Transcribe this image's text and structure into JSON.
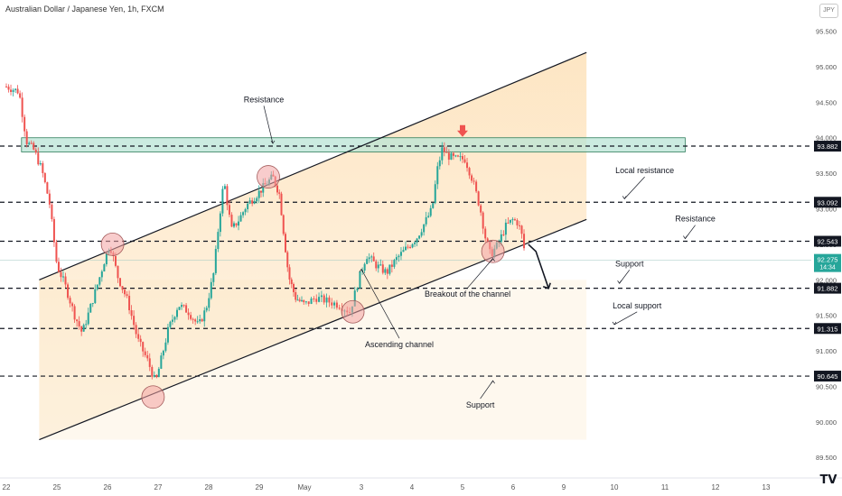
{
  "header": {
    "title": "Australian Dollar / Japanese Yen, 1h, FXCM",
    "currency": "JPY",
    "logo": "TV"
  },
  "colors": {
    "up": "#26a69a",
    "down": "#ef5350",
    "zone": "#b9e4d5",
    "channel_fill": "#fde3bd",
    "arrow": "#ef5350"
  },
  "chart_data": {
    "type": "candlestick",
    "symbol": "AUDJPY",
    "timeframe": "1h",
    "ylim": [
      89.3,
      95.85
    ],
    "y_ticks": [
      89.5,
      90.0,
      90.5,
      91.0,
      91.5,
      92.0,
      92.5,
      93.0,
      93.5,
      94.0,
      94.5,
      95.0,
      95.5
    ],
    "y_tick_labels": [
      "89.500",
      "90.000",
      "90.500",
      "91.000",
      "91.500",
      "92.000",
      "92.500",
      "93.000",
      "93.500",
      "94.000",
      "94.500",
      "95.000",
      "95.500"
    ],
    "x_ticks": [
      {
        "label": "22",
        "day": 0
      },
      {
        "label": "25",
        "day": 1
      },
      {
        "label": "26",
        "day": 2
      },
      {
        "label": "27",
        "day": 3
      },
      {
        "label": "28",
        "day": 4
      },
      {
        "label": "29",
        "day": 5
      },
      {
        "label": "May",
        "day": 6
      },
      {
        "label": "3",
        "day": 7
      },
      {
        "label": "4",
        "day": 8
      },
      {
        "label": "5",
        "day": 9
      },
      {
        "label": "6",
        "day": 10
      },
      {
        "label": "9",
        "day": 11
      },
      {
        "label": "10",
        "day": 12
      },
      {
        "label": "11",
        "day": 13
      },
      {
        "label": "12",
        "day": 14
      },
      {
        "label": "13",
        "day": 15
      }
    ],
    "price_path": [
      [
        0.0,
        94.72
      ],
      [
        0.25,
        94.65
      ],
      [
        0.4,
        93.95
      ],
      [
        0.55,
        93.82
      ],
      [
        0.7,
        93.55
      ],
      [
        0.85,
        93.1
      ],
      [
        1.0,
        92.2
      ],
      [
        1.15,
        91.95
      ],
      [
        1.35,
        91.5
      ],
      [
        1.5,
        91.25
      ],
      [
        1.7,
        91.7
      ],
      [
        1.85,
        92.05
      ],
      [
        1.95,
        92.3
      ],
      [
        2.05,
        92.5
      ],
      [
        2.2,
        92.05
      ],
      [
        2.4,
        91.7
      ],
      [
        2.6,
        91.15
      ],
      [
        2.8,
        90.85
      ],
      [
        2.95,
        90.55
      ],
      [
        3.05,
        90.85
      ],
      [
        3.2,
        91.3
      ],
      [
        3.4,
        91.65
      ],
      [
        3.6,
        91.55
      ],
      [
        3.8,
        91.35
      ],
      [
        3.95,
        91.6
      ],
      [
        4.1,
        92.1
      ],
      [
        4.2,
        92.8
      ],
      [
        4.3,
        93.4
      ],
      [
        4.45,
        92.7
      ],
      [
        4.6,
        92.85
      ],
      [
        4.75,
        93.05
      ],
      [
        4.95,
        93.2
      ],
      [
        5.15,
        93.35
      ],
      [
        5.3,
        93.45
      ],
      [
        5.45,
        93.2
      ],
      [
        5.55,
        92.6
      ],
      [
        5.65,
        92.05
      ],
      [
        5.8,
        91.75
      ],
      [
        6.0,
        91.65
      ],
      [
        6.2,
        91.75
      ],
      [
        6.4,
        91.7
      ],
      [
        6.6,
        91.65
      ],
      [
        6.8,
        91.55
      ],
      [
        6.95,
        92.0
      ],
      [
        7.1,
        92.35
      ],
      [
        7.3,
        92.2
      ],
      [
        7.5,
        92.1
      ],
      [
        7.7,
        92.3
      ],
      [
        7.9,
        92.45
      ],
      [
        8.1,
        92.6
      ],
      [
        8.25,
        92.8
      ],
      [
        8.4,
        93.0
      ],
      [
        8.5,
        93.55
      ],
      [
        8.6,
        93.85
      ],
      [
        8.7,
        93.75
      ],
      [
        8.85,
        93.7
      ],
      [
        9.05,
        93.7
      ],
      [
        9.2,
        93.4
      ],
      [
        9.35,
        93.0
      ],
      [
        9.45,
        92.6
      ],
      [
        9.55,
        92.35
      ],
      [
        9.7,
        92.5
      ],
      [
        9.85,
        92.75
      ],
      [
        10.0,
        92.85
      ],
      [
        10.1,
        92.8
      ],
      [
        10.2,
        92.55
      ],
      [
        10.25,
        92.2
      ]
    ],
    "price_line": {
      "value": 92.275,
      "label": "92.275",
      "countdown": "14:34"
    },
    "levels": [
      {
        "value": 93.882,
        "label": "93.882"
      },
      {
        "value": 93.092,
        "label": "93.092"
      },
      {
        "value": 92.543,
        "label": "92.543"
      },
      {
        "value": 91.882,
        "label": "91.882"
      },
      {
        "value": 91.315,
        "label": "91.315"
      },
      {
        "value": 90.645,
        "label": "90.645"
      }
    ],
    "resistance_zone": {
      "y1": 93.8,
      "y2": 94.0,
      "x1": 0.3,
      "x2": 13.4
    },
    "channel": {
      "upper": [
        [
          0.65,
          92.0
        ],
        [
          11.45,
          95.2
        ]
      ],
      "lower": [
        [
          0.65,
          89.75
        ],
        [
          11.45,
          92.85
        ]
      ]
    },
    "circles": [
      [
        2.1,
        92.5
      ],
      [
        5.2,
        93.45
      ],
      [
        2.9,
        90.35
      ],
      [
        6.85,
        91.55
      ],
      [
        9.6,
        92.4
      ]
    ],
    "down_arrow": {
      "day": 9.0,
      "price": 94.05
    },
    "projection": [
      [
        10.3,
        92.5
      ],
      [
        10.45,
        92.4
      ],
      [
        10.7,
        91.88
      ]
    ],
    "annotations": [
      {
        "text": "Resistance",
        "x": 5.1,
        "y": 94.5,
        "tx": 5.3,
        "ty": 93.92
      },
      {
        "text": "Local resistance",
        "x": 12.6,
        "y": 93.5,
        "tx": 12.2,
        "ty": 93.14
      },
      {
        "text": "Resistance",
        "x": 13.6,
        "y": 92.82,
        "tx": 13.4,
        "ty": 92.58
      },
      {
        "text": "Support",
        "x": 12.3,
        "y": 92.19,
        "tx": 12.1,
        "ty": 91.95
      },
      {
        "text": "Local support",
        "x": 12.45,
        "y": 91.6,
        "tx": 12.0,
        "ty": 91.37
      },
      {
        "text": "Support",
        "x": 9.35,
        "y": 90.2,
        "tx": 9.6,
        "ty": 90.58
      },
      {
        "text": "Breakout of the channel",
        "x": 9.1,
        "y": 91.76,
        "tx": 9.6,
        "ty": 92.3
      },
      {
        "text": "Ascending channel",
        "x": 7.75,
        "y": 91.05,
        "tx": 7.0,
        "ty": 92.15
      }
    ]
  }
}
